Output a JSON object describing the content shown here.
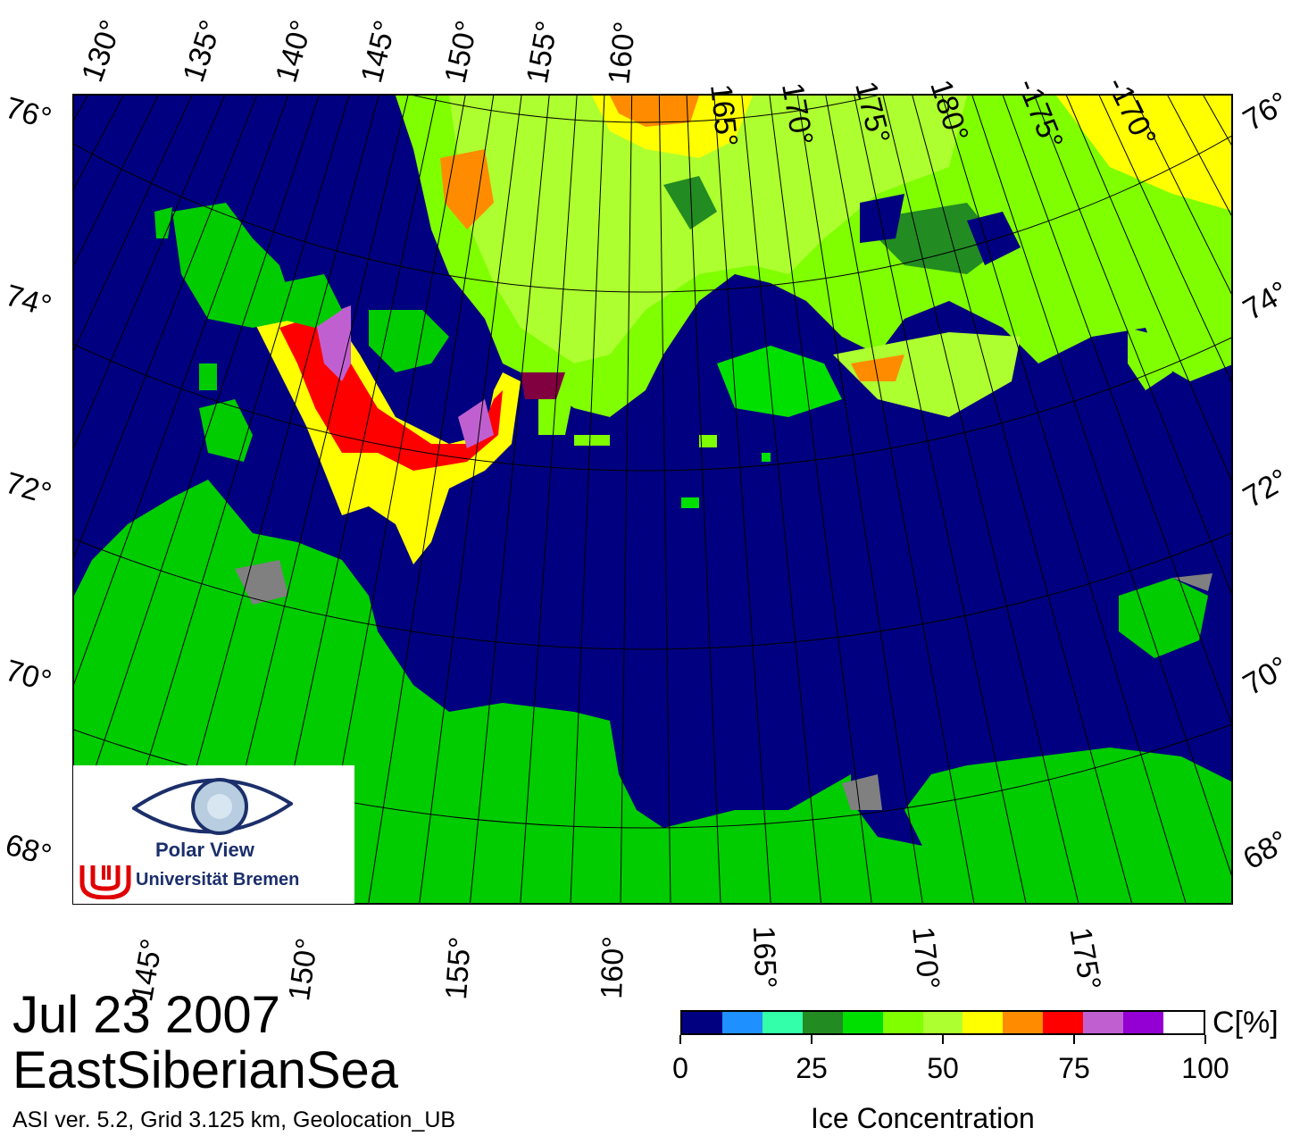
{
  "map": {
    "top_lon_labels": [
      "130°",
      "135°",
      "140°",
      "145°",
      "150°",
      "155°",
      "160°",
      "165°",
      "170°",
      "175°",
      "180°",
      "-175°",
      "-170°"
    ],
    "bottom_lon_labels": [
      "145°",
      "150°",
      "155°",
      "160°",
      "165°",
      "170°",
      "175°"
    ],
    "left_lat_labels": [
      "76°",
      "74°",
      "72°",
      "70°",
      "68°"
    ],
    "right_lat_labels": [
      "76°",
      "74°",
      "72°",
      "70°",
      "68°"
    ],
    "colors": {
      "ocean": "#000080",
      "land": "#00cc00",
      "coast": "#808080",
      "grid": "#000000"
    }
  },
  "title": {
    "date": "Jul 23 2007",
    "region": "EastSiberianSea"
  },
  "footnote": "ASI ver. 5.2,  Grid 3.125 km, Geolocation_UB",
  "legend": {
    "unit": "C[%]",
    "title": "Ice Concentration",
    "ticks": [
      "0",
      "25",
      "50",
      "75",
      "100"
    ],
    "colors": [
      "#000080",
      "#1e90ff",
      "#33ffaa",
      "#228b22",
      "#00e000",
      "#7fff00",
      "#adff2f",
      "#ffff00",
      "#ff8c00",
      "#ff0000",
      "#c060d0",
      "#9400d3",
      "#ffffff"
    ]
  },
  "logo": {
    "name": "Polar View",
    "org": "Universität Bremen"
  }
}
